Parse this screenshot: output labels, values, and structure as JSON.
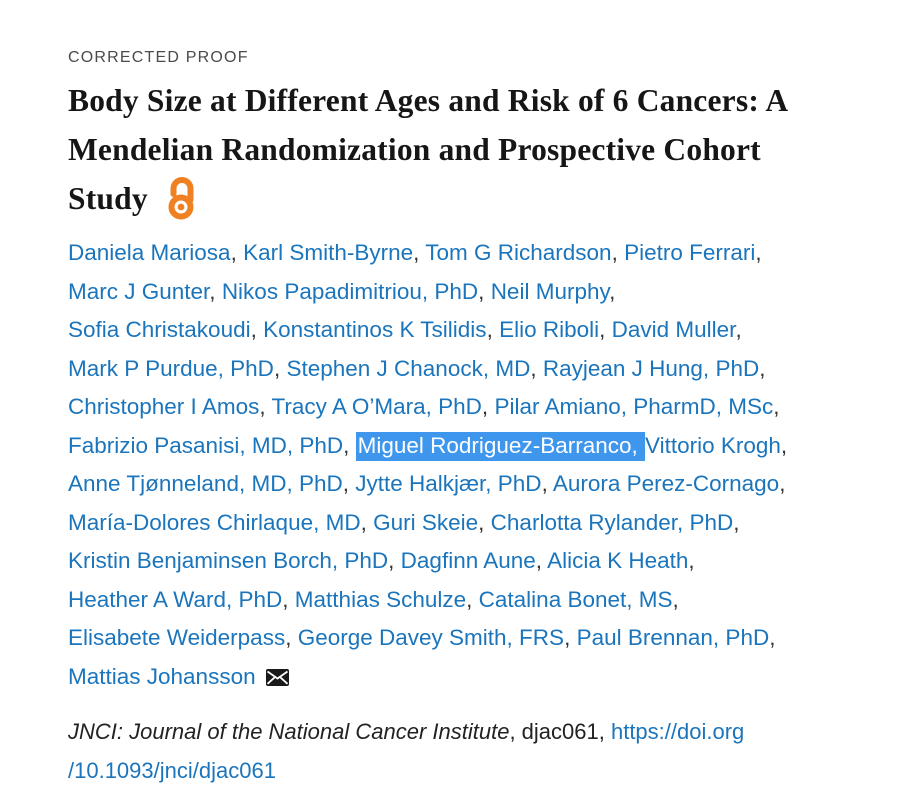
{
  "page": {
    "status_label": "CORRECTED PROOF",
    "title_lines": [
      "Body Size at Different Ages and Risk of 6 Cancers: A",
      "Mendelian Randomization and Prospective Cohort",
      "Study"
    ],
    "colors": {
      "link_blue": "#1b75bc",
      "selection_blue": "#3e96ed",
      "open_access_orange": "#f08122",
      "text_dark": "#333333"
    },
    "icons": {
      "open_access": "open-padlock-icon",
      "correspondence": "envelope-icon"
    }
  },
  "authors": {
    "lines": [
      [
        {
          "t": "Daniela Mariosa",
          "k": "link"
        },
        {
          "t": ", ",
          "k": "sep"
        },
        {
          "t": "Karl Smith-Byrne",
          "k": "link"
        },
        {
          "t": ", ",
          "k": "sep"
        },
        {
          "t": "Tom G Richardson",
          "k": "link"
        },
        {
          "t": ", ",
          "k": "sep"
        },
        {
          "t": "Pietro Ferrari",
          "k": "link"
        },
        {
          "t": ",",
          "k": "sep"
        }
      ],
      [
        {
          "t": "Marc J Gunter",
          "k": "link"
        },
        {
          "t": ", ",
          "k": "sep"
        },
        {
          "t": "Nikos Papadimitriou, PhD",
          "k": "link"
        },
        {
          "t": ", ",
          "k": "sep"
        },
        {
          "t": "Neil Murphy",
          "k": "link"
        },
        {
          "t": ",",
          "k": "sep"
        }
      ],
      [
        {
          "t": "Sofia Christakoudi",
          "k": "link"
        },
        {
          "t": ", ",
          "k": "sep"
        },
        {
          "t": "Konstantinos K Tsilidis",
          "k": "link"
        },
        {
          "t": ", ",
          "k": "sep"
        },
        {
          "t": "Elio Riboli",
          "k": "link"
        },
        {
          "t": ", ",
          "k": "sep"
        },
        {
          "t": "David Muller",
          "k": "link"
        },
        {
          "t": ",",
          "k": "sep"
        }
      ],
      [
        {
          "t": "Mark P Purdue, PhD",
          "k": "link"
        },
        {
          "t": ", ",
          "k": "sep"
        },
        {
          "t": "Stephen J Chanock, MD",
          "k": "link"
        },
        {
          "t": ", ",
          "k": "sep"
        },
        {
          "t": "Rayjean J Hung, PhD",
          "k": "link"
        },
        {
          "t": ",",
          "k": "sep"
        }
      ],
      [
        {
          "t": "Christopher I Amos",
          "k": "link"
        },
        {
          "t": ", ",
          "k": "sep"
        },
        {
          "t": "Tracy A O’Mara, PhD",
          "k": "link"
        },
        {
          "t": ", ",
          "k": "sep"
        },
        {
          "t": "Pilar Amiano, PharmD, MSc",
          "k": "link"
        },
        {
          "t": ",",
          "k": "sep"
        }
      ],
      [
        {
          "t": "Fabrizio Pasanisi, MD, PhD",
          "k": "link"
        },
        {
          "t": ", ",
          "k": "sep"
        },
        {
          "t": "Miguel Rodriguez-Barranco, ",
          "k": "sel"
        },
        {
          "t": "Vittorio Krogh",
          "k": "link"
        },
        {
          "t": ",",
          "k": "sep"
        }
      ],
      [
        {
          "t": "Anne Tjønneland, MD, PhD",
          "k": "link"
        },
        {
          "t": ", ",
          "k": "sep"
        },
        {
          "t": "Jytte Halkjær, PhD",
          "k": "link"
        },
        {
          "t": ", ",
          "k": "sep"
        },
        {
          "t": "Aurora Perez-Cornago",
          "k": "link"
        },
        {
          "t": ",",
          "k": "sep"
        }
      ],
      [
        {
          "t": "María-Dolores Chirlaque, MD",
          "k": "link"
        },
        {
          "t": ", ",
          "k": "sep"
        },
        {
          "t": "Guri Skeie",
          "k": "link"
        },
        {
          "t": ", ",
          "k": "sep"
        },
        {
          "t": "Charlotta Rylander, PhD",
          "k": "link"
        },
        {
          "t": ",",
          "k": "sep"
        }
      ],
      [
        {
          "t": "Kristin Benjaminsen Borch, PhD",
          "k": "link"
        },
        {
          "t": ", ",
          "k": "sep"
        },
        {
          "t": "Dagfinn Aune",
          "k": "link"
        },
        {
          "t": ", ",
          "k": "sep"
        },
        {
          "t": "Alicia K Heath",
          "k": "link"
        },
        {
          "t": ",",
          "k": "sep"
        }
      ],
      [
        {
          "t": "Heather A Ward, PhD",
          "k": "link"
        },
        {
          "t": ", ",
          "k": "sep"
        },
        {
          "t": "Matthias Schulze",
          "k": "link"
        },
        {
          "t": ", ",
          "k": "sep"
        },
        {
          "t": "Catalina Bonet, MS",
          "k": "link"
        },
        {
          "t": ",",
          "k": "sep"
        }
      ],
      [
        {
          "t": "Elisabete Weiderpass",
          "k": "link"
        },
        {
          "t": ", ",
          "k": "sep"
        },
        {
          "t": "George Davey Smith, FRS",
          "k": "link"
        },
        {
          "t": ", ",
          "k": "sep"
        },
        {
          "t": "Paul Brennan, PhD",
          "k": "link"
        },
        {
          "t": ",",
          "k": "sep"
        }
      ],
      [
        {
          "t": "Mattias Johansson",
          "k": "link"
        },
        {
          "t": " ",
          "k": "sep"
        },
        {
          "k": "email-icon"
        }
      ]
    ]
  },
  "citation": {
    "journal_italic": "JNCI: Journal of the National Cancer Institute",
    "article_id": ", djac061, ",
    "doi_link_line1": "https://doi.org",
    "doi_link_line2": "/10.1093/jnci/djac061"
  }
}
